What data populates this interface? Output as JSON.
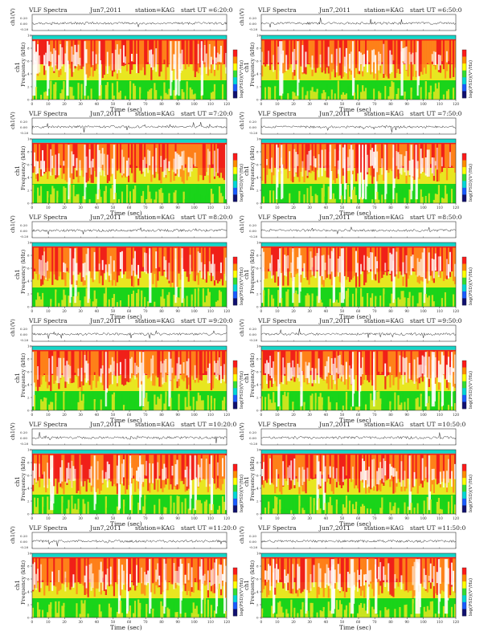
{
  "chart_data": [
    {
      "type": "heatmap",
      "header": "VLF Spectra",
      "date": "Jun7,2011",
      "station": "station=KAG",
      "start_ut": "start UT =6:20:0",
      "xlabel": "Time (sec)",
      "ylabel": "Frequency (kHz)",
      "channel_label": "ch1",
      "amp_label": "ch1(V)",
      "amp_ticks": [
        "0.20",
        "0.00",
        "-0.20"
      ],
      "colorbar_label": "log(PSD)(V²/Hz)",
      "x": [
        0,
        10,
        20,
        30,
        40,
        50,
        60,
        70,
        80,
        90,
        100,
        110,
        120
      ],
      "y_ticks": [
        0,
        2,
        4,
        6,
        8,
        10
      ],
      "xlim": [
        0,
        120
      ],
      "ylim": [
        0,
        10
      ],
      "seed": 11
    },
    {
      "type": "heatmap",
      "header": "VLF Spectra",
      "date": "Jun7,2011",
      "station": "station=KAG",
      "start_ut": "start UT =6:50:0",
      "xlabel": "Time (sec)",
      "ylabel": "Frequency (kHz)",
      "channel_label": "ch1",
      "amp_label": "ch1(V)",
      "amp_ticks": [
        "0.20",
        "0.00",
        "-0.20"
      ],
      "colorbar_label": "log(PSD)(V²/Hz)",
      "x": [
        0,
        10,
        20,
        30,
        40,
        50,
        60,
        70,
        80,
        90,
        100,
        110,
        120
      ],
      "y_ticks": [
        0,
        2,
        4,
        6,
        8,
        10
      ],
      "xlim": [
        0,
        120
      ],
      "ylim": [
        0,
        10
      ],
      "seed": 23
    },
    {
      "type": "heatmap",
      "header": "VLF Spectra",
      "date": "Jun7,2011",
      "station": "station=KAG",
      "start_ut": "start UT =7:20:0",
      "xlabel": "Time (sec)",
      "ylabel": "Frequency (kHz)",
      "channel_label": "ch1",
      "amp_label": "ch1(V)",
      "amp_ticks": [
        "0.20",
        "0.00",
        "-0.20"
      ],
      "colorbar_label": "log(PSD)(V²/Hz)",
      "x": [
        0,
        10,
        20,
        30,
        40,
        50,
        60,
        70,
        80,
        90,
        100,
        110,
        120
      ],
      "y_ticks": [
        0,
        2,
        4,
        6,
        8,
        10
      ],
      "xlim": [
        0,
        120
      ],
      "ylim": [
        0,
        10
      ],
      "seed": 37
    },
    {
      "type": "heatmap",
      "header": "VLF Spectra",
      "date": "Jun7,2011",
      "station": "station=KAG",
      "start_ut": "start UT =7:50:0",
      "xlabel": "Time (sec)",
      "ylabel": "Frequency (kHz)",
      "channel_label": "ch1",
      "amp_label": "ch1(V)",
      "amp_ticks": [
        "0.20",
        "0.00",
        "-0.20"
      ],
      "colorbar_label": "log(PSD)(V²/Hz)",
      "x": [
        0,
        10,
        20,
        30,
        40,
        50,
        60,
        70,
        80,
        90,
        100,
        110,
        120
      ],
      "y_ticks": [
        0,
        2,
        4,
        6,
        8,
        10
      ],
      "xlim": [
        0,
        120
      ],
      "ylim": [
        0,
        10
      ],
      "seed": 41
    },
    {
      "type": "heatmap",
      "header": "VLF Spectra",
      "date": "Jun7,2011",
      "station": "station=KAG",
      "start_ut": "start UT =8:20:0",
      "xlabel": "Time (sec)",
      "ylabel": "Frequency (kHz)",
      "channel_label": "ch1",
      "amp_label": "ch1(V)",
      "amp_ticks": [
        "0.20",
        "0.00",
        "-0.20"
      ],
      "colorbar_label": "log(PSD)(V²/Hz)",
      "x": [
        0,
        10,
        20,
        30,
        40,
        50,
        60,
        70,
        80,
        90,
        100,
        110,
        120
      ],
      "y_ticks": [
        0,
        2,
        4,
        6,
        8,
        10
      ],
      "xlim": [
        0,
        120
      ],
      "ylim": [
        0,
        10
      ],
      "seed": 53
    },
    {
      "type": "heatmap",
      "header": "VLF Spectra",
      "date": "Jun7,2011",
      "station": "station=KAG",
      "start_ut": "start UT =8:50:0",
      "xlabel": "Time (sec)",
      "ylabel": "Frequency (kHz)",
      "channel_label": "ch1",
      "amp_label": "ch1(V)",
      "amp_ticks": [
        "0.20",
        "0.00",
        "-0.20"
      ],
      "colorbar_label": "log(PSD)(V²/Hz)",
      "x": [
        0,
        10,
        20,
        30,
        40,
        50,
        60,
        70,
        80,
        90,
        100,
        110,
        120
      ],
      "y_ticks": [
        0,
        2,
        4,
        6,
        8,
        10
      ],
      "xlim": [
        0,
        120
      ],
      "ylim": [
        0,
        10
      ],
      "seed": 61
    },
    {
      "type": "heatmap",
      "header": "VLF Spectra",
      "date": "Jun7,2011",
      "station": "station=KAG",
      "start_ut": "start UT =9:20:0",
      "xlabel": "Time (sec)",
      "ylabel": "Frequency (kHz)",
      "channel_label": "ch1",
      "amp_label": "ch1(V)",
      "amp_ticks": [
        "0.20",
        "0.00",
        "-0.20"
      ],
      "colorbar_label": "log(PSD)(V²/Hz)",
      "x": [
        0,
        10,
        20,
        30,
        40,
        50,
        60,
        70,
        80,
        90,
        100,
        110,
        120
      ],
      "y_ticks": [
        0,
        2,
        4,
        6,
        8,
        10
      ],
      "xlim": [
        0,
        120
      ],
      "ylim": [
        0,
        10
      ],
      "seed": 73
    },
    {
      "type": "heatmap",
      "header": "VLF Spectra",
      "date": "Jun7,2011",
      "station": "station=KAG",
      "start_ut": "start UT =9:50:0",
      "xlabel": "Time (sec)",
      "ylabel": "Frequency (kHz)",
      "channel_label": "ch1",
      "amp_label": "ch1(V)",
      "amp_ticks": [
        "0.20",
        "0.00",
        "-0.20"
      ],
      "colorbar_label": "log(PSD)(V²/Hz)",
      "x": [
        0,
        10,
        20,
        30,
        40,
        50,
        60,
        70,
        80,
        90,
        100,
        110,
        120
      ],
      "y_ticks": [
        0,
        2,
        4,
        6,
        8,
        10
      ],
      "xlim": [
        0,
        120
      ],
      "ylim": [
        0,
        10
      ],
      "seed": 89
    },
    {
      "type": "heatmap",
      "header": "VLF Spectra",
      "date": "Jun7,2011",
      "station": "station=KAG",
      "start_ut": "start UT =10:20:0",
      "xlabel": "Time (sec)",
      "ylabel": "Frequency (kHz)",
      "channel_label": "ch1",
      "amp_label": "ch1(V)",
      "amp_ticks": [
        "0.20",
        "0.00",
        "-0.20"
      ],
      "colorbar_label": "log(PSD)(V²/Hz)",
      "x": [
        0,
        10,
        20,
        30,
        40,
        50,
        60,
        70,
        80,
        90,
        100,
        110,
        120
      ],
      "y_ticks": [
        0,
        2,
        4,
        6,
        8,
        10
      ],
      "xlim": [
        0,
        120
      ],
      "ylim": [
        0,
        10
      ],
      "seed": 97
    },
    {
      "type": "heatmap",
      "header": "VLF Spectra",
      "date": "Jun7,2011",
      "station": "station=KAG",
      "start_ut": "start UT =10:50:0",
      "xlabel": "Time (sec)",
      "ylabel": "Frequency (kHz)",
      "channel_label": "ch1",
      "amp_label": "ch1(V)",
      "amp_ticks": [
        "0.20",
        "0.00",
        "-0.20"
      ],
      "colorbar_label": "log(PSD)(V²/Hz)",
      "x": [
        0,
        10,
        20,
        30,
        40,
        50,
        60,
        70,
        80,
        90,
        100,
        110,
        120
      ],
      "y_ticks": [
        0,
        2,
        4,
        6,
        8,
        10
      ],
      "xlim": [
        0,
        120
      ],
      "ylim": [
        0,
        10
      ],
      "seed": 103
    },
    {
      "type": "heatmap",
      "header": "VLF Spectra",
      "date": "Jun7,2011",
      "station": "station=KAG",
      "start_ut": "start UT =11:20:0",
      "xlabel": "Time (sec)",
      "ylabel": "Frequency (kHz)",
      "channel_label": "ch1",
      "amp_label": "ch1(V)",
      "amp_ticks": [
        "0.20",
        "0.00",
        "-0.20"
      ],
      "colorbar_label": "log(PSD)(V²/Hz)",
      "x": [
        0,
        10,
        20,
        30,
        40,
        50,
        60,
        70,
        80,
        90,
        100,
        110,
        120
      ],
      "y_ticks": [
        0,
        2,
        4,
        6,
        8,
        10
      ],
      "xlim": [
        0,
        120
      ],
      "ylim": [
        0,
        10
      ],
      "seed": 109
    },
    {
      "type": "heatmap",
      "header": "VLF Spectra",
      "date": "Jun7,2011",
      "station": "station=KAG",
      "start_ut": "start UT =11:50:0",
      "xlabel": "Time (sec)",
      "ylabel": "Frequency (kHz)",
      "channel_label": "ch1",
      "amp_label": "ch1(V)",
      "amp_ticks": [
        "0.20",
        "0.00",
        "-0.20"
      ],
      "colorbar_label": "log(PSD)(V²/Hz)",
      "x": [
        0,
        10,
        20,
        30,
        40,
        50,
        60,
        70,
        80,
        90,
        100,
        110,
        120
      ],
      "y_ticks": [
        0,
        2,
        4,
        6,
        8,
        10
      ],
      "xlim": [
        0,
        120
      ],
      "ylim": [
        0,
        10
      ],
      "seed": 127
    }
  ],
  "colors": {
    "noise_low": "#1ad41a",
    "noise_mid": "#e8e620",
    "band_red": "#f0201a",
    "band_orange": "#ff8c1a",
    "band_top": "#12d6c8",
    "gap": "#ffffff",
    "colorbar": [
      "#ff1a1a",
      "#ff8c00",
      "#ffff00",
      "#33dd33",
      "#00d6d6",
      "#1a5cff",
      "#101070"
    ]
  }
}
